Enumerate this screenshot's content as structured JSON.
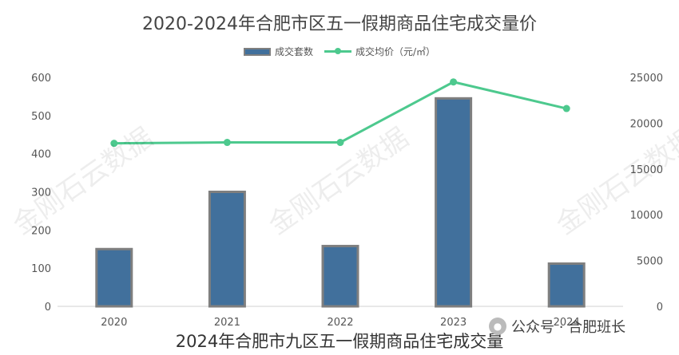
{
  "title": "2020-2024年合肥市区五一假期商品住宅成交量价",
  "subtitle": "2024年合肥市九区五一假期商品住宅成交量",
  "watermark": "金刚石云数据",
  "credit": "公众号 · 合肥班长",
  "credit_icon": "wechat-icon",
  "chart_data": {
    "type": "bar+line",
    "categories": [
      "2020",
      "2021",
      "2022",
      "2023",
      "2024"
    ],
    "series": [
      {
        "name": "成交套数",
        "type": "bar",
        "axis": "left",
        "values": [
          150,
          300,
          158,
          545,
          112
        ],
        "color": "#41709c"
      },
      {
        "name": "成交均价（元/㎡）",
        "type": "line",
        "axis": "right",
        "values": [
          17800,
          17900,
          17900,
          24500,
          21600
        ],
        "color": "#4dc98e"
      }
    ],
    "y_left": {
      "ylim": [
        0,
        600
      ],
      "ticks": [
        0,
        100,
        200,
        300,
        400,
        500,
        600
      ]
    },
    "y_right": {
      "ylim": [
        0,
        25000
      ],
      "ticks": [
        0,
        5000,
        10000,
        15000,
        20000,
        25000
      ]
    },
    "legend_position": "top-center",
    "grid": false
  }
}
